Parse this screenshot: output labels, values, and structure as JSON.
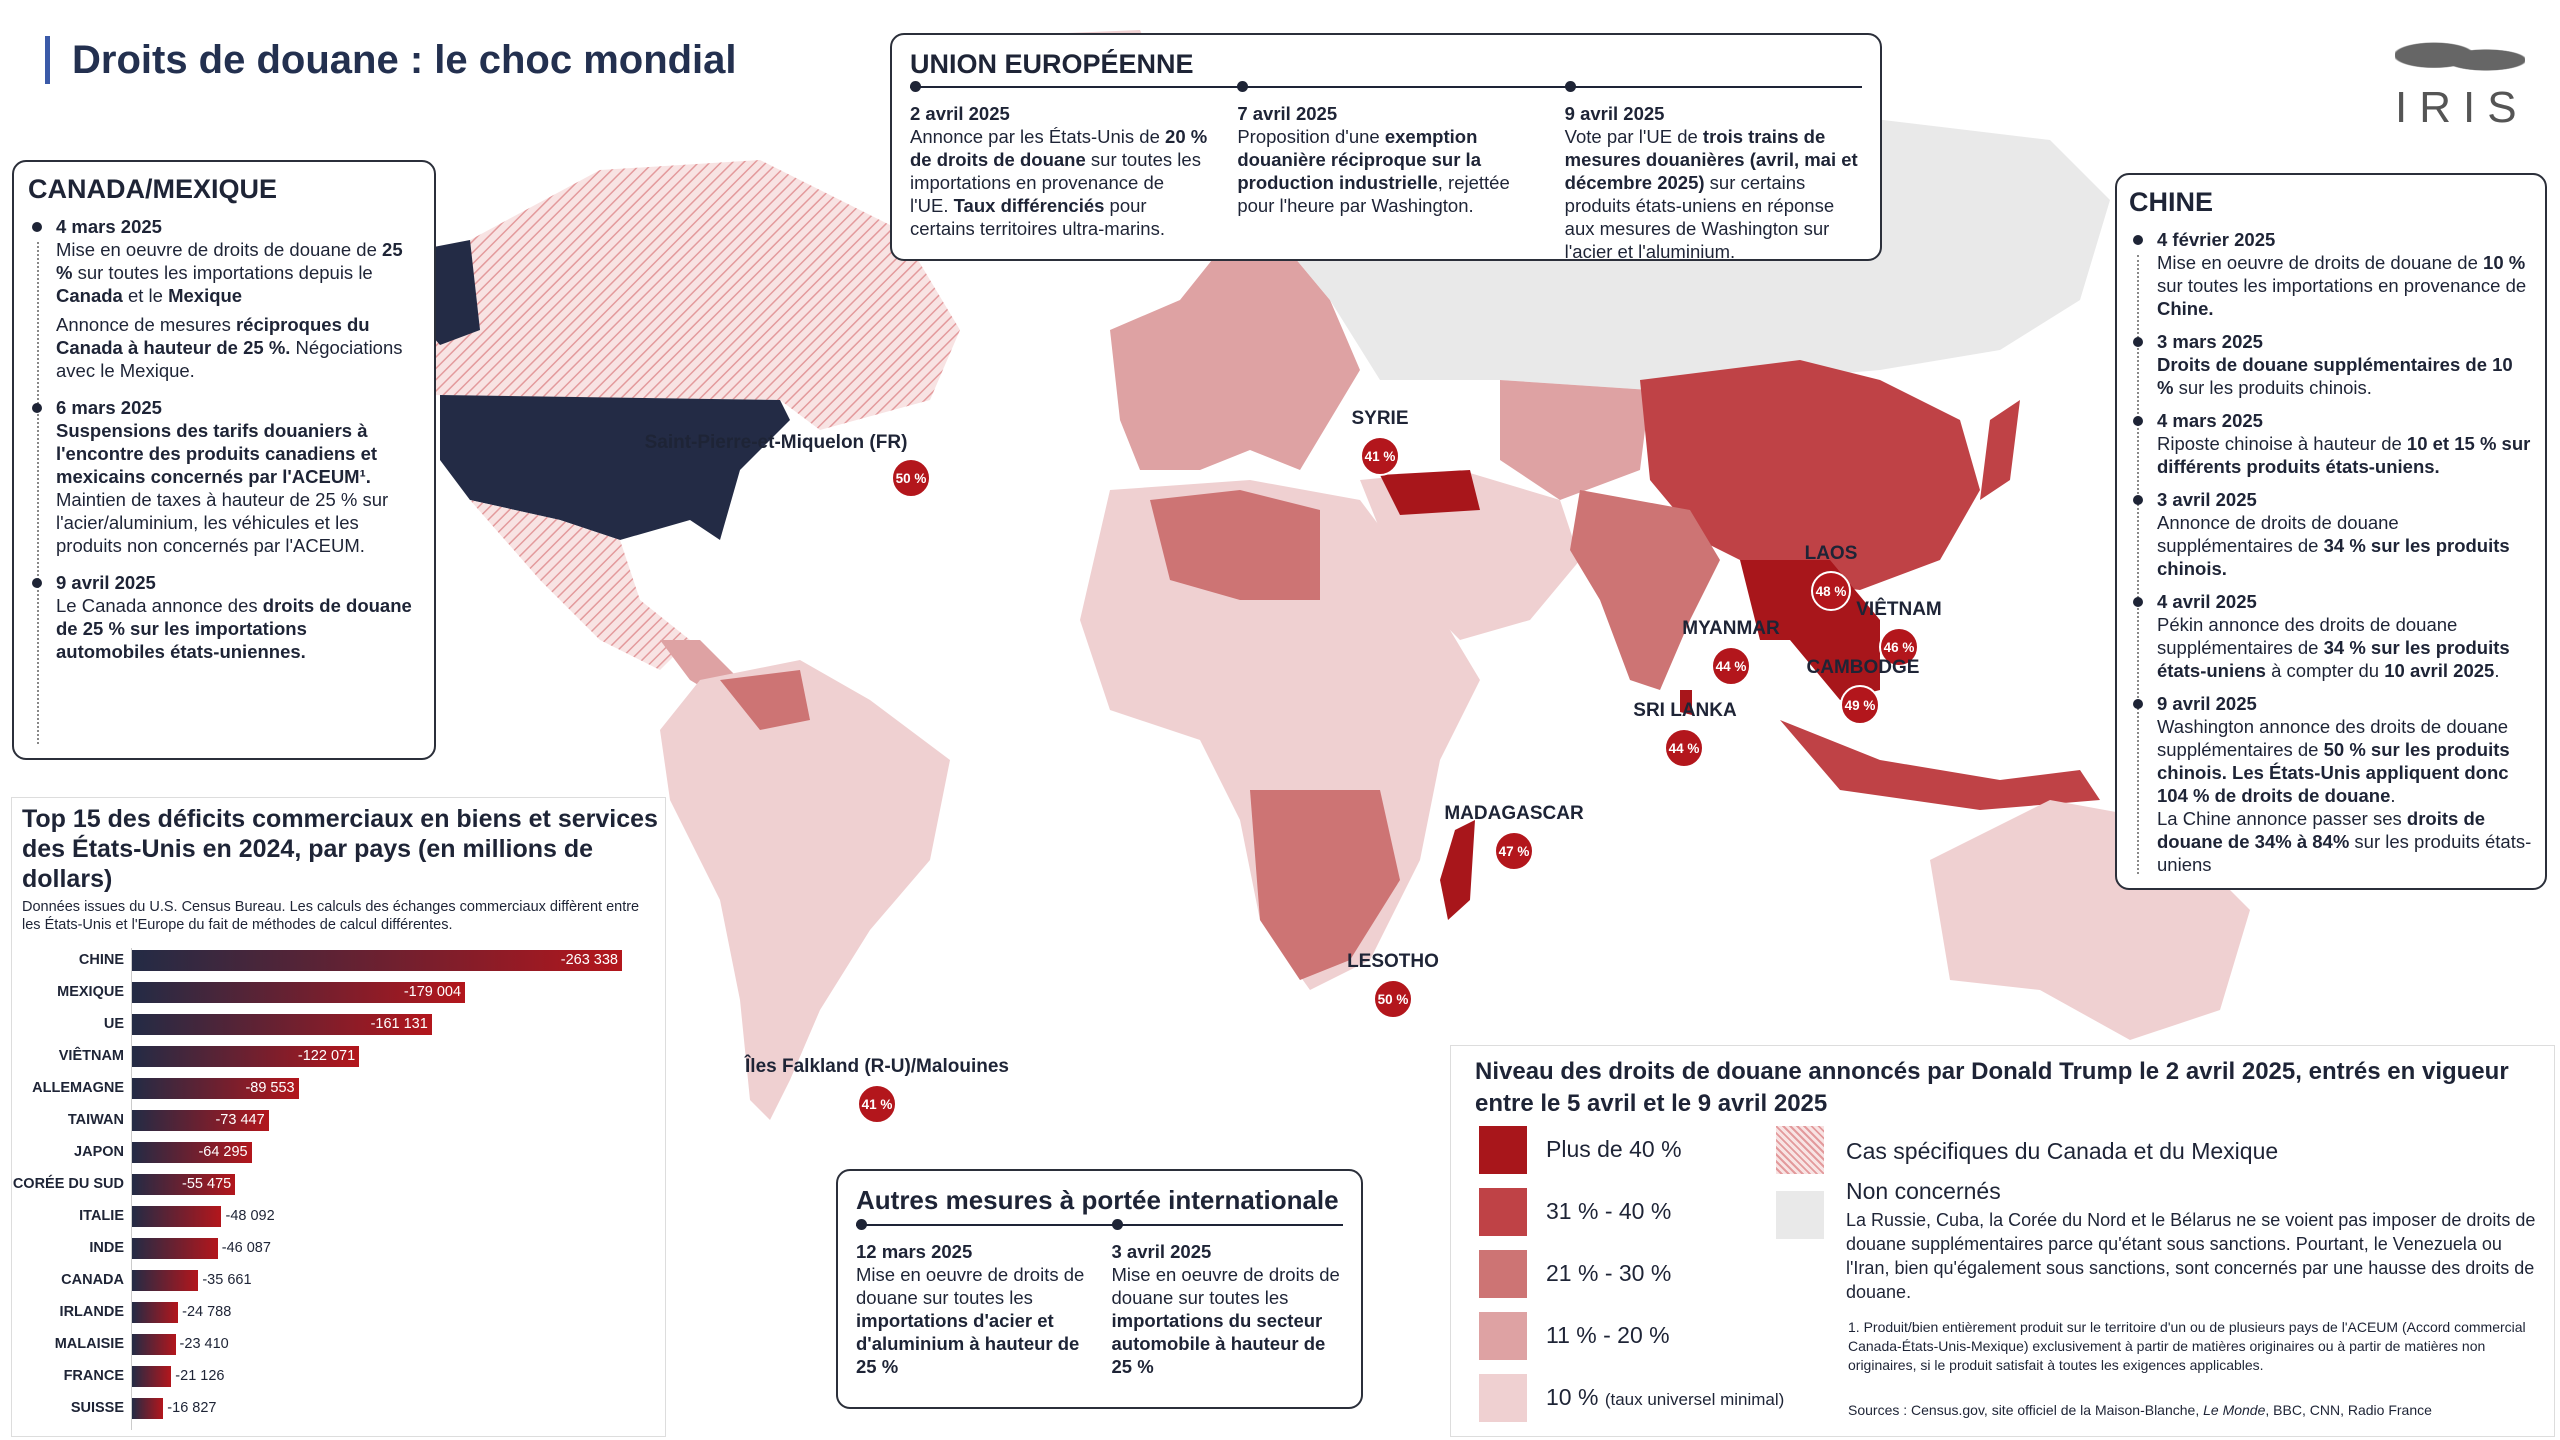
{
  "title": "Droits de douane : le choc mondial",
  "logo": "IRIS",
  "colors": {
    "over40": "#a8161b",
    "r31_40": "#bf4246",
    "r21_30": "#cd7474",
    "r11_20": "#dea2a3",
    "r10": "#efd0d1",
    "none": "#e9e9e9",
    "usa": "#232b45",
    "accent": "#3b5aa8"
  },
  "canada_mexique": {
    "heading": "CANADA/MEXIQUE",
    "events": [
      {
        "date": "4 mars 2025",
        "t1": "Mise en oeuvre de droits de douane de ",
        "b1": "25 %",
        "t2": " sur toutes les importations depuis le ",
        "b2": "Canada",
        "t3": " et le ",
        "b3": "Mexique",
        "p2a": "Annonce de mesures ",
        "p2b": "réciproques du Canada à hauteur de 25 %.",
        "p2c": " Négociations avec le Mexique."
      },
      {
        "date": "6 mars 2025",
        "b1": "Suspensions des tarifs douaniers à l'encontre des produits canadiens et mexicains concernés par l'ACEUM¹.",
        "t1": " Maintien de taxes à hauteur de 25 % sur l'acier/aluminium, les véhicules et les produits non concernés par l'ACEUM."
      },
      {
        "date": "9 avril 2025",
        "t1": "Le Canada annonce des ",
        "b1": "droits de douane de 25 % sur les importations automobiles états-uniennes."
      }
    ]
  },
  "ue": {
    "heading": "UNION EUROPÉENNE",
    "events": [
      {
        "date": "2 avril 2025",
        "t1": "Annonce par les États-Unis de ",
        "b1": "20 % de droits de douane",
        "t2": " sur toutes les importations en provenance de l'UE. ",
        "b2": "Taux différenciés",
        "t3": " pour certains territoires ultra-marins."
      },
      {
        "date": "7 avril 2025",
        "t1": "Proposition d'une ",
        "b1": "exemption douanière réciproque sur la production industrielle",
        "t2": ", rejettée pour l'heure par Washington."
      },
      {
        "date": "9 avril 2025",
        "t1": "Vote par l'UE de ",
        "b1": "trois trains de mesures douanières (avril, mai et décembre 2025)",
        "t2": " sur certains produits états-uniens en réponse aux mesures de Washington sur l'acier et l'aluminium."
      }
    ]
  },
  "chine": {
    "heading": "CHINE",
    "events": [
      {
        "date": "4 février 2025",
        "t1": "Mise en oeuvre de droits de douane de ",
        "b1": "10 %",
        "t2": " sur toutes les importations en provenance de ",
        "b2": "Chine."
      },
      {
        "date": "3 mars 2025",
        "b1": "Droits de douane supplémentaires de 10 %",
        "t1": " sur les produits chinois."
      },
      {
        "date": "4 mars 2025",
        "t1": "Riposte chinoise à hauteur de ",
        "b1": "10 et 15 % sur différents produits états-uniens."
      },
      {
        "date": "3 avril 2025",
        "t1": "Annonce de droits de douane supplémentaires de ",
        "b1": "34 % sur les produits chinois."
      },
      {
        "date": "4 avril 2025",
        "t1": "Pékin annonce des droits de douane supplémentaires de ",
        "b1": "34 % sur les produits états-uniens",
        "t2": " à compter du ",
        "b2": "10 avril 2025",
        "t3": "."
      },
      {
        "date": "9 avril 2025",
        "t1": "Washington annonce des droits de douane supplémentaires de ",
        "b1": "50 % sur les produits chinois. Les États-Unis appliquent donc 104 % de droits de douane",
        "t2": ".",
        "p2a": "La Chine annonce passer ses ",
        "p2b": "droits de douane de 34% à 84%",
        "p2c": " sur les produits états-uniens"
      }
    ]
  },
  "map_labels": [
    {
      "name": "Saint-Pierre-et-Miquelon (FR)",
      "pct": "50 %"
    },
    {
      "name": "SYRIE",
      "pct": "41 %"
    },
    {
      "name": "LAOS",
      "pct": "48 %"
    },
    {
      "name": "VIÊTNAM",
      "pct": "46 %"
    },
    {
      "name": "MYANMAR",
      "pct": "44 %"
    },
    {
      "name": "CAMBODGE",
      "pct": "49 %"
    },
    {
      "name": "SRI LANKA",
      "pct": "44 %"
    },
    {
      "name": "MADAGASCAR",
      "pct": "47 %"
    },
    {
      "name": "LESOTHO",
      "pct": "50 %"
    },
    {
      "name": "Îles Falkland (R-U)/Malouines",
      "pct": "41 %"
    }
  ],
  "chart_data": {
    "type": "bar",
    "title": "Top 15 des déficits commerciaux en biens et services des États-Unis en 2024, par pays (en millions de dollars)",
    "subtitle": "Données issues du U.S. Census Bureau. Les calculs des échanges commerciaux diffèrent entre les États-Unis et l'Europe du fait de méthodes de calcul différentes.",
    "categories": [
      "CHINE",
      "MEXIQUE",
      "UE",
      "VIÊTNAM",
      "ALLEMAGNE",
      "TAIWAN",
      "JAPON",
      "CORÉE DU SUD",
      "ITALIE",
      "INDE",
      "CANADA",
      "IRLANDE",
      "MALAISIE",
      "FRANCE",
      "SUISSE"
    ],
    "values": [
      -263338,
      -179004,
      -161131,
      -122071,
      -89553,
      -73447,
      -64295,
      -55475,
      -48092,
      -46087,
      -35661,
      -24788,
      -23410,
      -21126,
      -16827
    ],
    "labels": [
      "-263 338",
      "-179 004",
      "-161 131",
      "-122 071",
      "-89 553",
      "-73 447",
      "-64 295",
      "-55 475",
      "-48 092",
      "-46 087",
      "-35 661",
      "-24 788",
      "-23 410",
      "-21 126",
      "-16 827"
    ],
    "orientation": "horizontal"
  },
  "autres": {
    "heading": "Autres mesures à portée internationale",
    "events": [
      {
        "date": "12 mars 2025",
        "t1": "Mise en oeuvre de droits de douane sur toutes les ",
        "b1": "importations d'acier et d'aluminium à hauteur de 25 %"
      },
      {
        "date": "3 avril 2025",
        "t1": "Mise en oeuvre de droits de douane sur toutes les ",
        "b1": "importations du secteur automobile à hauteur de 25 %"
      }
    ]
  },
  "legend": {
    "title": "Niveau des droits de douane annoncés par Donald Trump le 2 avril 2025, entrés en vigueur entre le 5 avril et le 9 avril 2025",
    "levels": [
      "Plus de 40 %",
      "31 % - 40 %",
      "21 % - 30 %",
      "11 % - 20 %",
      "10 %"
    ],
    "level_note": "(taux universel minimal)",
    "special": "Cas spécifiques du Canada et du Mexique",
    "none": "Non concernés",
    "none_note": "La Russie, Cuba, la Corée du Nord et le Bélarus ne se voient pas imposer de droits de douane supplémentaires parce qu'étant sous sanctions. Pourtant, le Venezuela ou l'Iran, bien qu'également sous sanctions, sont concernés par une hausse des droits de douane.",
    "footnote": "1. Produit/bien entièrement produit sur le territoire d'un ou de plusieurs pays de l'ACEUM (Accord commercial Canada-États-Unis-Mexique) exclusivement à partir de matières originaires ou à partir de matières non originaires, si le produit satisfait à toutes les exigences applicables.",
    "sources_a": "Sources : Census.gov, site officiel de la Maison-Blanche, ",
    "sources_i": "Le Monde",
    "sources_b": ", BBC, CNN, Radio France"
  }
}
